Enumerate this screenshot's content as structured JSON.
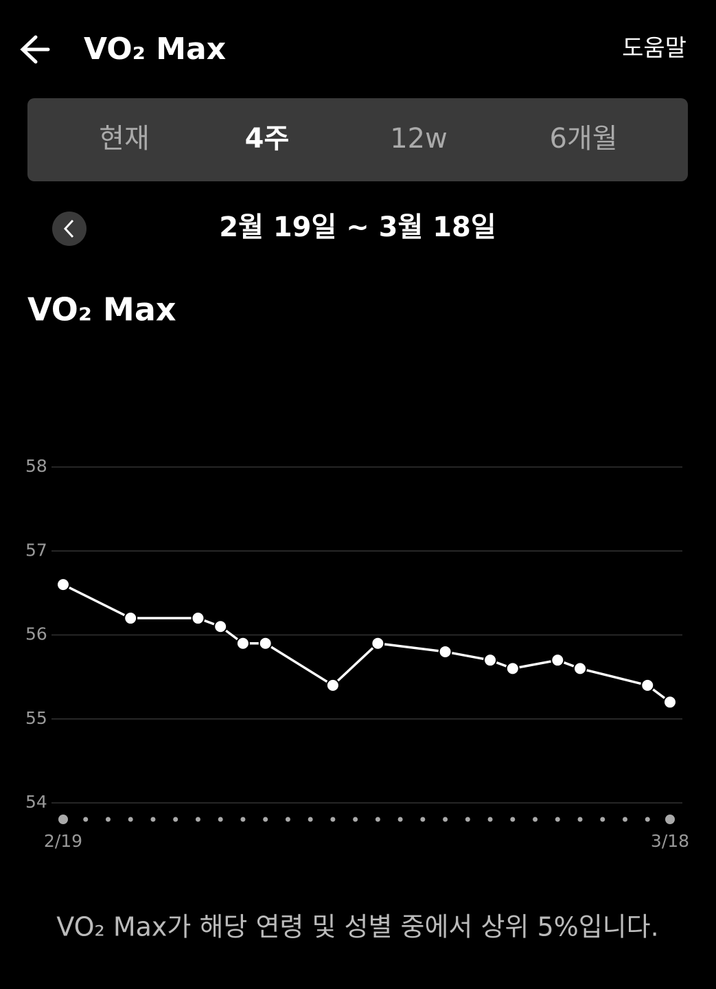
{
  "header": {
    "title": "VO₂ Max",
    "help": "도움말"
  },
  "tabs": {
    "items": [
      "현재",
      "4주",
      "12w",
      "6개월"
    ],
    "selected": 1
  },
  "date_range": "2월 19일 ~ 3월 18일",
  "chart_data": {
    "type": "line",
    "title": "VO₂ Max",
    "x": [
      0,
      3,
      6,
      7,
      8,
      9,
      12,
      14,
      17,
      19,
      20,
      22,
      23,
      26,
      27
    ],
    "series": [
      {
        "name": "VO₂ Max",
        "color": "#ffffff",
        "values": [
          56.6,
          56.2,
          56.2,
          56.1,
          55.9,
          55.9,
          55.4,
          55.9,
          55.8,
          55.7,
          55.6,
          55.7,
          55.6,
          55.4,
          55.2
        ]
      }
    ],
    "xlim": [
      0,
      27
    ],
    "xticks": [
      {
        "value": 0,
        "label": "2/19"
      },
      {
        "value": 27,
        "label": "3/18"
      }
    ],
    "ylim": [
      54,
      58
    ],
    "yticks": [
      54,
      55,
      56,
      57,
      58
    ],
    "grid": true
  },
  "footer": "VO₂ Max가 해당 연령 및 성별 중에서 상위 5%입니다."
}
